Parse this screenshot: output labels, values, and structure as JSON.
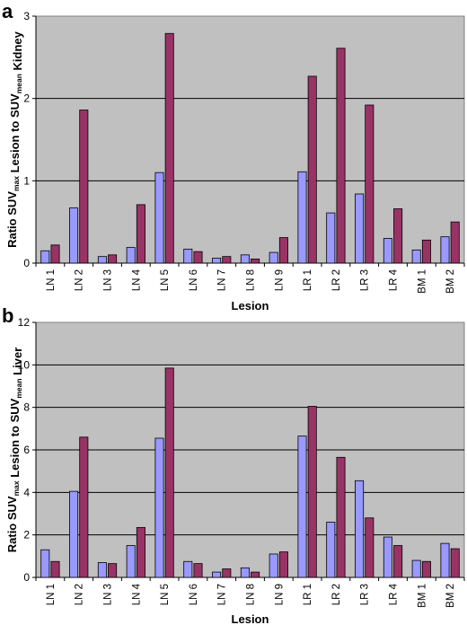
{
  "chart_data": [
    {
      "type": "bar",
      "panel": "a",
      "xlabel": "Lesion",
      "ylabel": {
        "pre": "Ratio SUV",
        "sub1": "max",
        "mid": " Lesion to SUV",
        "sub2": "mean",
        "post": " Kidney"
      },
      "ylim": [
        0,
        3
      ],
      "yticks": [
        "0",
        "1",
        "2",
        "3"
      ],
      "grid": true,
      "categories": [
        "LN 1",
        "LN 2",
        "LN 3",
        "LN 4",
        "LN 5",
        "LN 6",
        "LN 7",
        "LN 8",
        "LN 9",
        "LR 1",
        "LR 2",
        "LR 3",
        "LR 4",
        "BM 1",
        "BM 2"
      ],
      "series": [
        {
          "color": "#9999ff",
          "values": [
            0.15,
            0.67,
            0.08,
            0.19,
            1.1,
            0.17,
            0.06,
            0.1,
            0.13,
            1.11,
            0.61,
            0.84,
            0.3,
            0.16,
            0.32
          ]
        },
        {
          "color": "#993366",
          "values": [
            0.22,
            1.86,
            0.1,
            0.71,
            2.79,
            0.14,
            0.08,
            0.05,
            0.31,
            2.27,
            2.61,
            1.92,
            0.66,
            0.28,
            0.5
          ]
        }
      ]
    },
    {
      "type": "bar",
      "panel": "b",
      "xlabel": "Lesion",
      "ylabel": {
        "pre": "Ratio SUV",
        "sub1": "max",
        "mid": " Lesion to SUV",
        "sub2": "mean",
        "post": " Liver"
      },
      "ylim": [
        0,
        12
      ],
      "yticks": [
        "0",
        "2",
        "4",
        "6",
        "8",
        "10",
        "12"
      ],
      "grid": true,
      "categories": [
        "LN 1",
        "LN 2",
        "LN 3",
        "LN 4",
        "LN 5",
        "LN 6",
        "LN 7",
        "LN 8",
        "LN 9",
        "LR 1",
        "LR 2",
        "LR 3",
        "LR 4",
        "BM 1",
        "BM 2"
      ],
      "series": [
        {
          "color": "#9999ff",
          "values": [
            1.3,
            4.05,
            0.7,
            1.5,
            6.55,
            0.75,
            0.25,
            0.45,
            1.1,
            6.65,
            2.6,
            4.55,
            1.9,
            0.8,
            1.6
          ]
        },
        {
          "color": "#993366",
          "values": [
            0.75,
            6.6,
            0.65,
            2.35,
            9.85,
            0.65,
            0.4,
            0.25,
            1.2,
            8.05,
            5.65,
            2.8,
            1.5,
            0.75,
            1.35
          ]
        }
      ]
    }
  ]
}
